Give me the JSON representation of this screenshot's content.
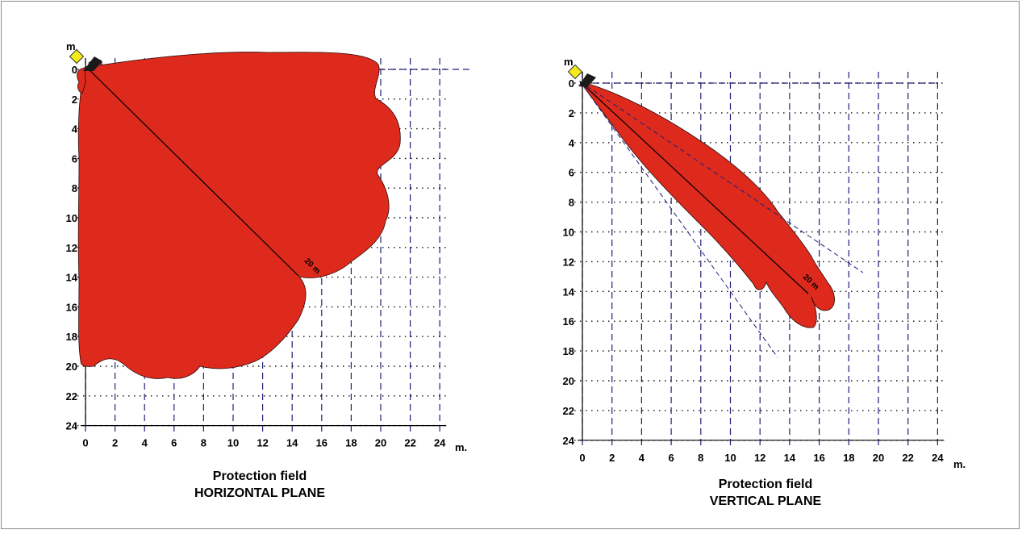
{
  "colors": {
    "field": "#dd2a1d",
    "grid_dashed": "#1f1f7a",
    "grid_dotted": "#111111",
    "sensor_body": "#1a1a1a",
    "sensor_head": "#f3ec1a"
  },
  "diagrams": [
    {
      "id": "horizontal",
      "unit_top": "m",
      "unit_right": "m.",
      "range_label": "20 m",
      "ticks_x": [
        "0",
        "2",
        "4",
        "6",
        "8",
        "10",
        "12",
        "14",
        "16",
        "18",
        "20",
        "22",
        "24"
      ],
      "ticks_y": [
        "0",
        "2",
        "4",
        "6",
        "8",
        "10",
        "12",
        "14",
        "16",
        "18",
        "20",
        "22",
        "24"
      ],
      "caption_line1": "Protection field",
      "caption_line2": "HORIZONTAL PLANE"
    },
    {
      "id": "vertical",
      "unit_top": "m",
      "unit_right": "m.",
      "range_label": "20 m",
      "ticks_x": [
        "0",
        "2",
        "4",
        "6",
        "8",
        "10",
        "12",
        "14",
        "16",
        "18",
        "20",
        "22",
        "24"
      ],
      "ticks_y": [
        "0",
        "2",
        "4",
        "6",
        "8",
        "10",
        "12",
        "14",
        "16",
        "18",
        "20",
        "22",
        "24"
      ],
      "caption_line1": "Protection field",
      "caption_line2": "VERTICAL PLANE"
    }
  ]
}
